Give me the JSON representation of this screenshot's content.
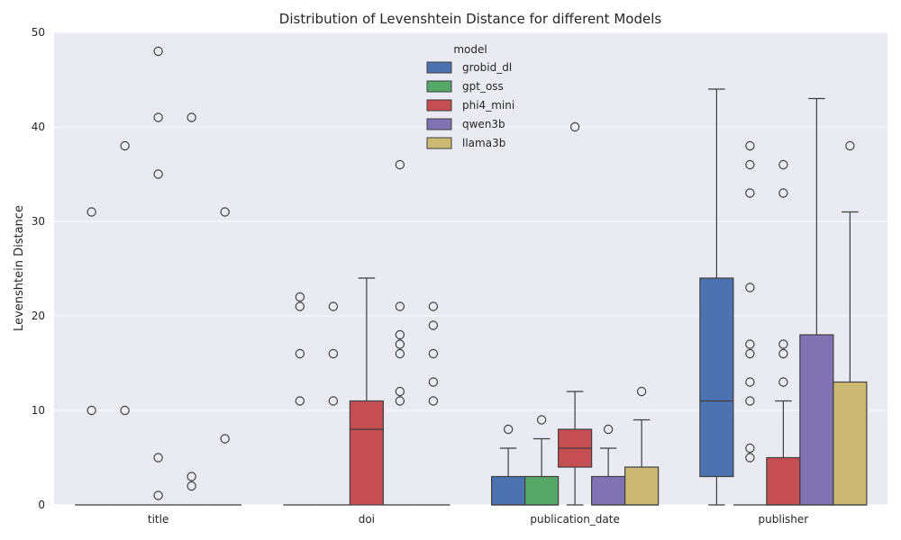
{
  "chart_data": {
    "type": "boxplot",
    "title": "Distribution of Levenshtein Distance for different Models",
    "xlabel": "",
    "ylabel": "Levenshtein Distance",
    "ylim": [
      0,
      50
    ],
    "yticks": [
      0,
      10,
      20,
      30,
      40,
      50
    ],
    "categories": [
      "title",
      "doi",
      "publication_date",
      "publisher"
    ],
    "legend": {
      "title": "model",
      "position": "top-center"
    },
    "grid": true,
    "background": "#eaeaf2",
    "series": [
      {
        "name": "grobid_dl",
        "color": "#4c72b0",
        "boxes": [
          {
            "q1": 0,
            "median": 0,
            "q3": 0,
            "whislo": 0,
            "whishi": 0,
            "fliers": [
              31,
              10
            ]
          },
          {
            "q1": 0,
            "median": 0,
            "q3": 0,
            "whislo": 0,
            "whishi": 0,
            "fliers": [
              22,
              21,
              16,
              11
            ]
          },
          {
            "q1": 0,
            "median": 0,
            "q3": 3,
            "whislo": 0,
            "whishi": 6,
            "fliers": [
              8
            ]
          },
          {
            "q1": 3,
            "median": 11,
            "q3": 24,
            "whislo": 0,
            "whishi": 44,
            "fliers": []
          }
        ]
      },
      {
        "name": "gpt_oss",
        "color": "#55a868",
        "boxes": [
          {
            "q1": 0,
            "median": 0,
            "q3": 0,
            "whislo": 0,
            "whishi": 0,
            "fliers": [
              38,
              10
            ]
          },
          {
            "q1": 0,
            "median": 0,
            "q3": 0,
            "whislo": 0,
            "whishi": 0,
            "fliers": [
              21,
              16,
              11
            ]
          },
          {
            "q1": 0,
            "median": 0,
            "q3": 3,
            "whislo": 0,
            "whishi": 7,
            "fliers": [
              9
            ]
          },
          {
            "q1": 0,
            "median": 0,
            "q3": 0,
            "whislo": 0,
            "whishi": 0,
            "fliers": [
              38,
              36,
              33,
              23,
              17,
              16,
              13,
              11,
              6,
              5
            ]
          }
        ]
      },
      {
        "name": "phi4_mini",
        "color": "#c44e52",
        "boxes": [
          {
            "q1": 0,
            "median": 0,
            "q3": 0,
            "whislo": 0,
            "whishi": 0,
            "fliers": [
              48,
              41,
              35,
              5,
              1
            ]
          },
          {
            "q1": 0,
            "median": 8,
            "q3": 11,
            "whislo": 0,
            "whishi": 24,
            "fliers": []
          },
          {
            "q1": 4,
            "median": 6,
            "q3": 8,
            "whislo": 0,
            "whishi": 12,
            "fliers": [
              40
            ]
          },
          {
            "q1": 0,
            "median": 0,
            "q3": 5,
            "whislo": 0,
            "whishi": 11,
            "fliers": [
              36,
              33,
              17,
              16,
              13
            ]
          }
        ]
      },
      {
        "name": "qwen3b",
        "color": "#8172b3",
        "boxes": [
          {
            "q1": 0,
            "median": 0,
            "q3": 0,
            "whislo": 0,
            "whishi": 0,
            "fliers": [
              41,
              3,
              2
            ]
          },
          {
            "q1": 0,
            "median": 0,
            "q3": 0,
            "whislo": 0,
            "whishi": 0,
            "fliers": [
              36,
              21,
              18,
              17,
              16,
              12,
              11
            ]
          },
          {
            "q1": 0,
            "median": 0,
            "q3": 3,
            "whislo": 0,
            "whishi": 6,
            "fliers": [
              8
            ]
          },
          {
            "q1": 0,
            "median": 0,
            "q3": 18,
            "whislo": 0,
            "whishi": 43,
            "fliers": []
          }
        ]
      },
      {
        "name": "llama3b",
        "color": "#ccb974",
        "boxes": [
          {
            "q1": 0,
            "median": 0,
            "q3": 0,
            "whislo": 0,
            "whishi": 0,
            "fliers": [
              31,
              7
            ]
          },
          {
            "q1": 0,
            "median": 0,
            "q3": 0,
            "whislo": 0,
            "whishi": 0,
            "fliers": [
              21,
              19,
              16,
              13,
              11
            ]
          },
          {
            "q1": 0,
            "median": 0,
            "q3": 4,
            "whislo": 0,
            "whishi": 9,
            "fliers": [
              12
            ]
          },
          {
            "q1": 0,
            "median": 0,
            "q3": 13,
            "whislo": 0,
            "whishi": 31,
            "fliers": [
              38
            ]
          }
        ]
      }
    ]
  }
}
